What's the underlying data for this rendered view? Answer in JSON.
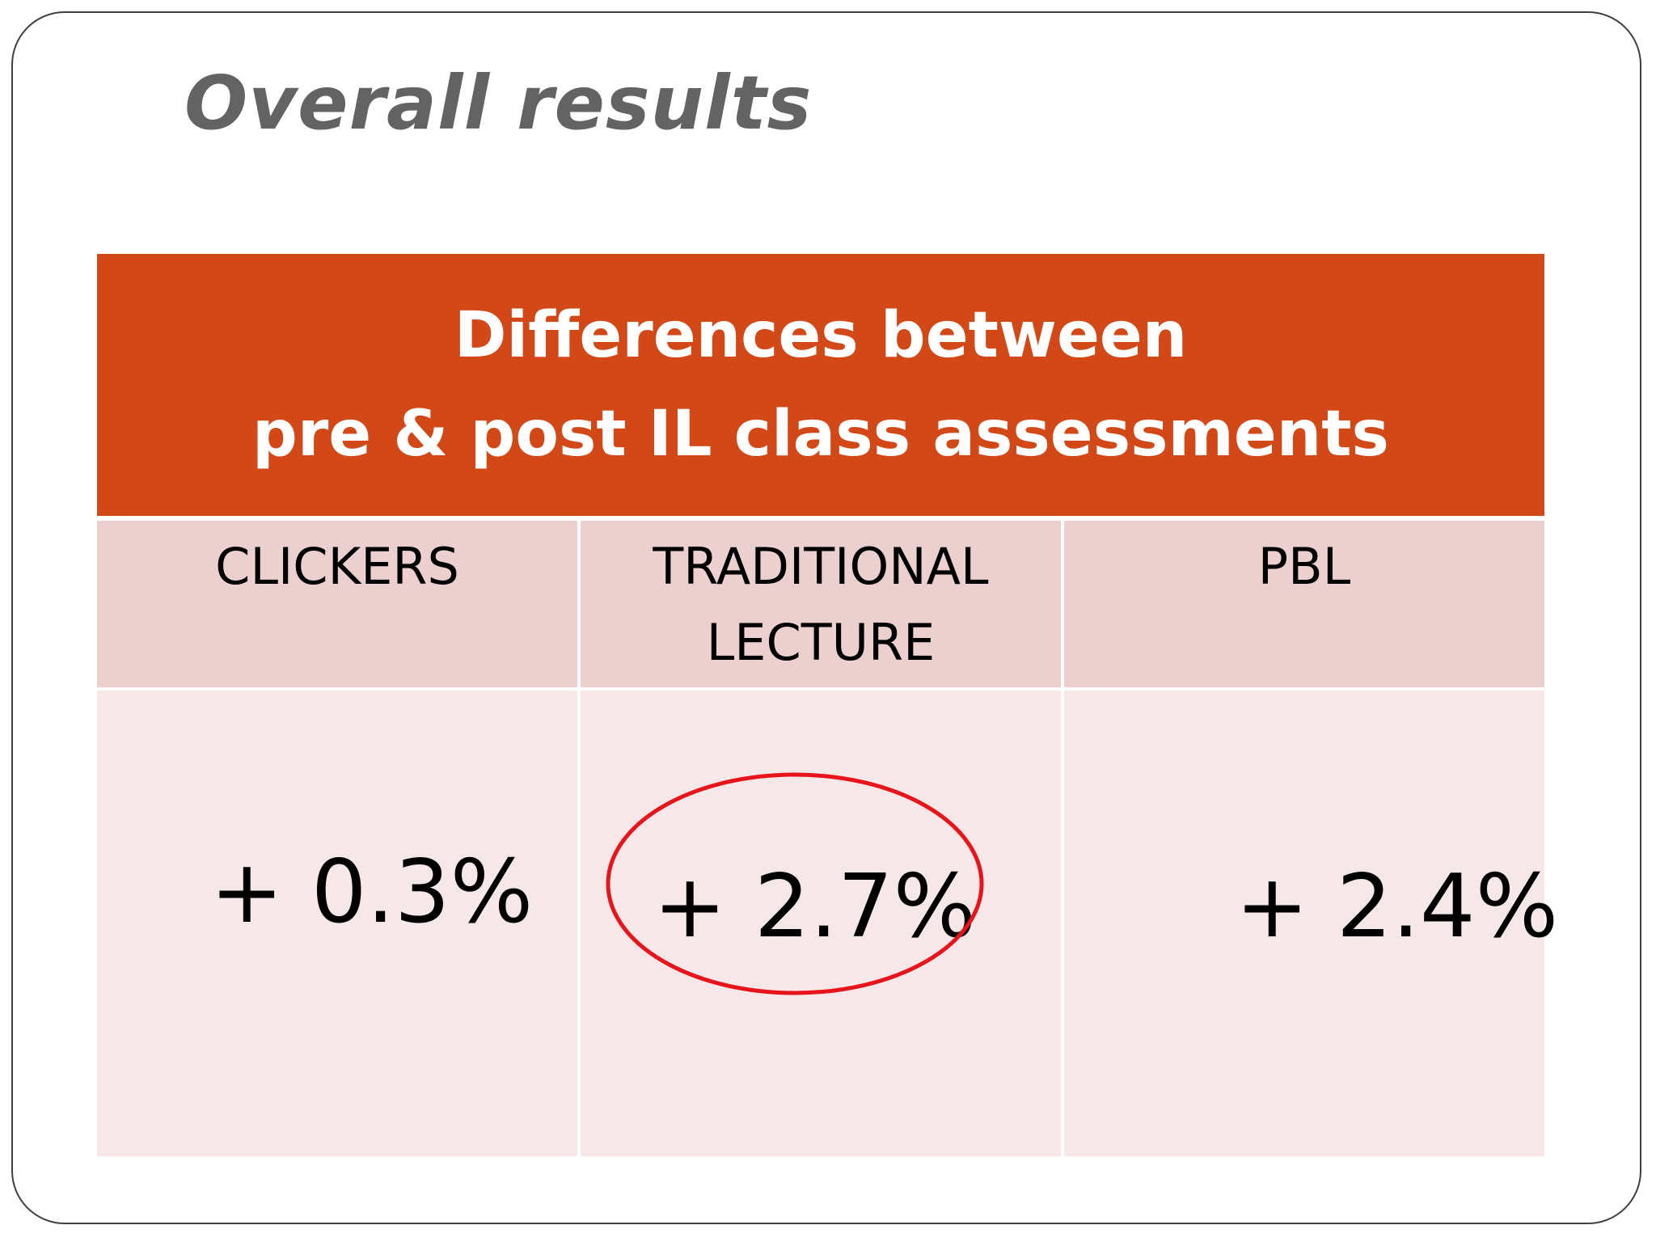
{
  "slide": {
    "title": "Overall results"
  },
  "table": {
    "header_line1": "Differences between",
    "header_line2": "pre & post IL class assessments",
    "columns": [
      {
        "label_lines": [
          "CLICKERS"
        ],
        "value": "+ 0.3%"
      },
      {
        "label_lines": [
          "TRADITIONAL",
          "LECTURE"
        ],
        "value": "+ 2.7%"
      },
      {
        "label_lines": [
          "PBL"
        ],
        "value": "+ 2.4%"
      }
    ]
  },
  "colors": {
    "header_bg": "#d24817",
    "column_head_bg": "#ecd0cf",
    "value_cell_bg": "#f6e8e8",
    "highlight_circle": "#e8141b",
    "title_text": "#636363"
  }
}
